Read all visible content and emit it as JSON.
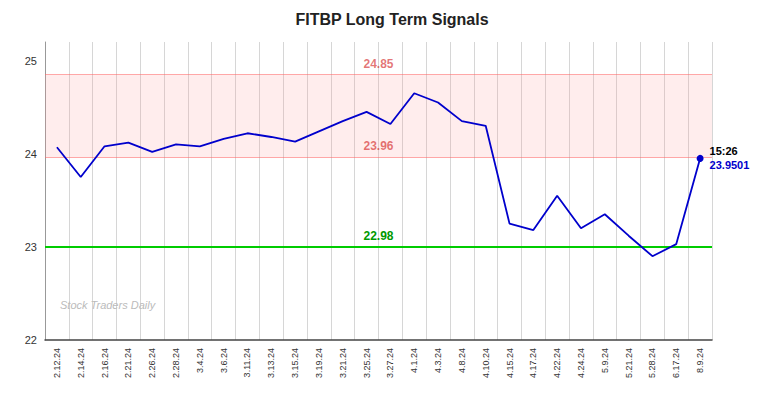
{
  "chart_data": {
    "type": "line",
    "title": "FITBP Long Term Signals",
    "categories": [
      "2.12.24",
      "2.14.24",
      "2.16.24",
      "2.21.24",
      "2.26.24",
      "2.28.24",
      "3.4.24",
      "3.6.24",
      "3.11.24",
      "3.13.24",
      "3.15.24",
      "3.19.24",
      "3.21.24",
      "3.25.24",
      "3.27.24",
      "4.1.24",
      "4.3.24",
      "4.8.24",
      "4.10.24",
      "4.15.24",
      "4.17.24",
      "4.22.24",
      "4.24.24",
      "5.9.24",
      "5.21.24",
      "5.28.24",
      "6.17.24",
      "8.9.24"
    ],
    "values": [
      24.07,
      23.75,
      24.08,
      24.12,
      24.02,
      24.1,
      24.08,
      24.16,
      24.22,
      24.18,
      24.13,
      24.24,
      24.35,
      24.45,
      24.32,
      24.65,
      24.55,
      24.35,
      24.3,
      23.25,
      23.18,
      23.55,
      23.2,
      23.35,
      23.12,
      22.9,
      23.03,
      23.95
    ],
    "color": "#0000cc",
    "ylim": [
      22,
      25.2
    ],
    "yticks": [
      22,
      23,
      24,
      25
    ],
    "grid": "x",
    "hlines": [
      {
        "value": 23.0,
        "color": "#00cc00",
        "label": "22.98",
        "label_color": "#009900"
      },
      {
        "value": 24.85,
        "color": "#ff6666",
        "label": "24.85",
        "label_color": "#cc0000"
      },
      {
        "value": 23.96,
        "color": "#ff6666",
        "label": "23.96",
        "label_color": "#cc0000"
      }
    ],
    "band": {
      "from": 23.96,
      "to": 24.85,
      "color": "#ff9999"
    },
    "annotations": [
      {
        "text": "15:26",
        "color": "#000000"
      },
      {
        "text": "23.9501",
        "color": "#0000cc"
      }
    ],
    "watermark": "Stock Traders Daily"
  }
}
